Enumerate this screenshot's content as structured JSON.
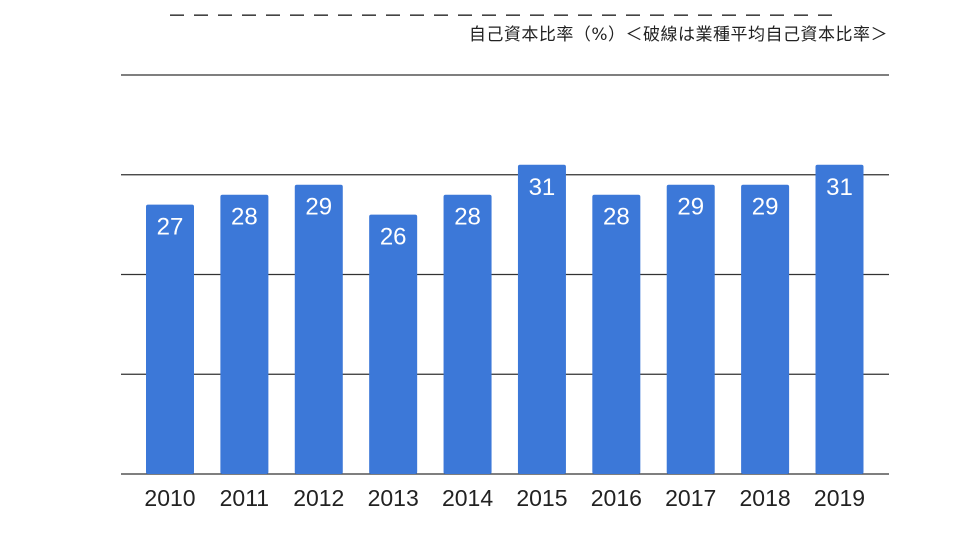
{
  "chart_data": {
    "type": "bar",
    "title": "自己資本比率（%）＜破線は業種平均自己資本比率＞",
    "categories": [
      "2010",
      "2011",
      "2012",
      "2013",
      "2014",
      "2015",
      "2016",
      "2017",
      "2018",
      "2019"
    ],
    "values": [
      27,
      28,
      29,
      26,
      28,
      31,
      28,
      29,
      29,
      31
    ],
    "industry_average": 46,
    "ylim": [
      0,
      40
    ],
    "yticks": [
      0,
      10,
      20,
      30,
      40
    ],
    "xlabel": "",
    "ylabel": "",
    "grid": true,
    "legend": "none",
    "colors": {
      "bar": "#3c78d8",
      "average_line": "#444444"
    }
  }
}
